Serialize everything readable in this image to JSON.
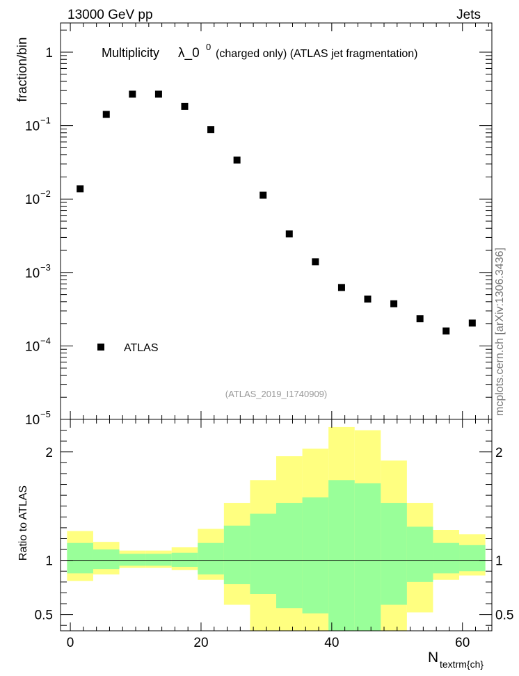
{
  "header": {
    "left": "13000 GeV pp",
    "right": "Jets"
  },
  "side_label": "mcplots.cern.ch [arXiv:1306.3436]",
  "chart_data": [
    {
      "type": "scatter",
      "title_main": "Multiplicity",
      "title_lambda": "λ_0",
      "title_sup": "0",
      "title_rest": "(charged only) (ATLAS jet fragmentation)",
      "ylabel": "fraction/bin",
      "yscale": "log",
      "ylim": [
        1e-05,
        2.5
      ],
      "xlim": [
        -1.5,
        64.5
      ],
      "yticks": [
        {
          "value": 1,
          "base": "1",
          "exp": ""
        },
        {
          "value": 0.1,
          "base": "10",
          "exp": "−1"
        },
        {
          "value": 0.01,
          "base": "10",
          "exp": "−2"
        },
        {
          "value": 0.001,
          "base": "10",
          "exp": "−3"
        },
        {
          "value": 0.0001,
          "base": "10",
          "exp": "−4"
        },
        {
          "value": 1e-05,
          "base": "10",
          "exp": "−5"
        }
      ],
      "legend": "ATLAS",
      "watermark": "(ATLAS_2019_I1740909)",
      "series": [
        {
          "name": "ATLAS",
          "x": [
            1.5,
            5.5,
            9.5,
            13.5,
            17.5,
            21.5,
            25.5,
            29.5,
            33.5,
            37.5,
            41.5,
            45.5,
            49.5,
            53.5,
            57.5,
            61.5
          ],
          "y": [
            0.0138,
            0.142,
            0.268,
            0.268,
            0.183,
            0.0885,
            0.0339,
            0.0113,
            0.00335,
            0.0014,
            0.000625,
            0.000435,
            0.000375,
            0.000235,
            0.00016,
            0.000205
          ]
        }
      ]
    },
    {
      "type": "area",
      "ylabel": "Ratio to ATLAS",
      "xlabel_base": "N",
      "xlabel_sub": "textrm{ch}",
      "xlim": [
        -1.5,
        64.5
      ],
      "ylim": [
        0.35,
        2.3
      ],
      "xticks": [
        "0",
        "20",
        "40",
        "60"
      ],
      "xtick_values": [
        0,
        20,
        40,
        60
      ],
      "yticks": [
        "0.5",
        "1",
        "2"
      ],
      "ytick_values": [
        0.5,
        1,
        2
      ],
      "bin_edges": [
        -0.5,
        3.5,
        7.5,
        11.5,
        15.5,
        19.5,
        23.5,
        27.5,
        31.5,
        35.5,
        39.5,
        43.5,
        47.5,
        51.5,
        55.5,
        59.5,
        63.5
      ],
      "green_band": {
        "upper": [
          1.16,
          1.1,
          1.06,
          1.06,
          1.07,
          1.16,
          1.32,
          1.43,
          1.53,
          1.58,
          1.74,
          1.71,
          1.53,
          1.31,
          1.16,
          1.14
        ],
        "lower": [
          0.88,
          0.92,
          0.95,
          0.95,
          0.94,
          0.87,
          0.78,
          0.69,
          0.56,
          0.51,
          0.35,
          0.35,
          0.59,
          0.8,
          0.88,
          0.9
        ]
      },
      "yellow_band": {
        "upper": [
          1.27,
          1.17,
          1.09,
          1.09,
          1.12,
          1.29,
          1.53,
          1.74,
          1.96,
          2.03,
          2.23,
          2.2,
          1.92,
          1.53,
          1.28,
          1.24
        ],
        "lower": [
          0.81,
          0.87,
          0.93,
          0.93,
          0.91,
          0.82,
          0.59,
          0.35,
          0.35,
          0.35,
          0.35,
          0.35,
          0.35,
          0.52,
          0.82,
          0.86
        ]
      },
      "reference": 1
    }
  ]
}
